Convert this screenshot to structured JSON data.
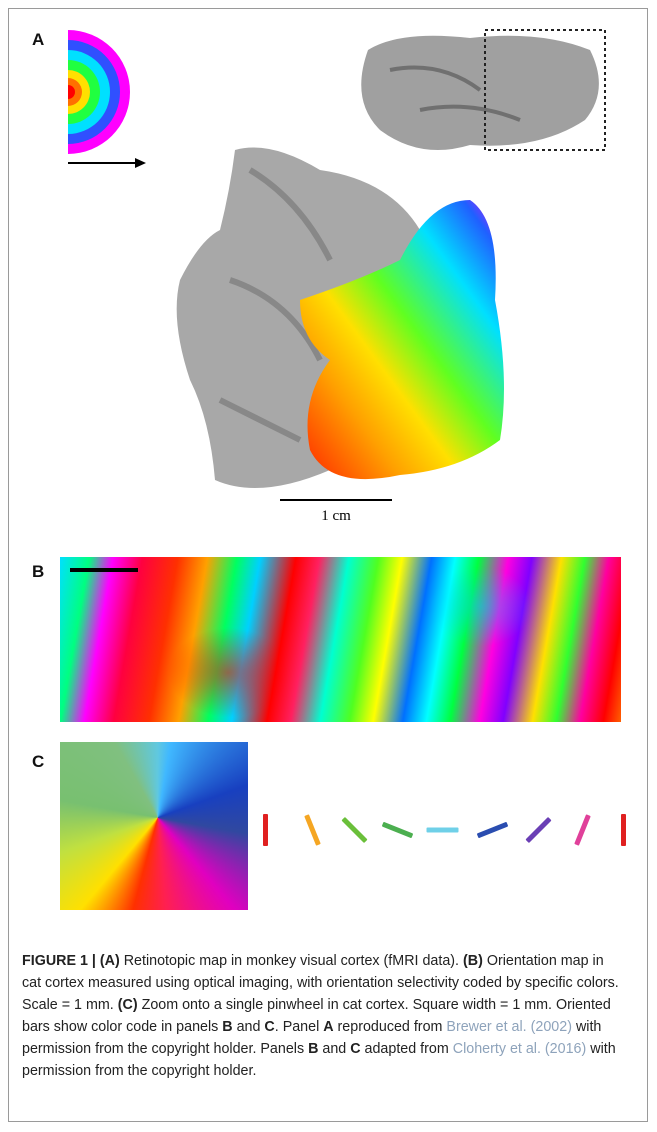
{
  "panels": {
    "a": {
      "label": "A",
      "scale_label": "1 cm"
    },
    "b": {
      "label": "B"
    },
    "c": {
      "label": "C"
    }
  },
  "caption": {
    "parts": [
      "FIGURE 1 | (A)",
      " Retinotopic map in monkey visual cortex (fMRI data). ",
      "(B)",
      " Orientation map in cat cortex measured using optical imaging, with orientation selectivity coded by specific colors. Scale = 1 mm. ",
      "(C)",
      " Zoom onto a single pinwheel in cat cortex. Square width = 1 mm. Oriented bars show color code in panels ",
      "B",
      " and ",
      "C",
      ". Panel ",
      "A",
      " reproduced from ",
      "Brewer et al. (2002)",
      " with permission from the copyright holder. Panels ",
      "B",
      " and ",
      "C",
      " adapted from ",
      "Cloherty et al. (2016)",
      " with permission from the copyright holder."
    ]
  }
}
